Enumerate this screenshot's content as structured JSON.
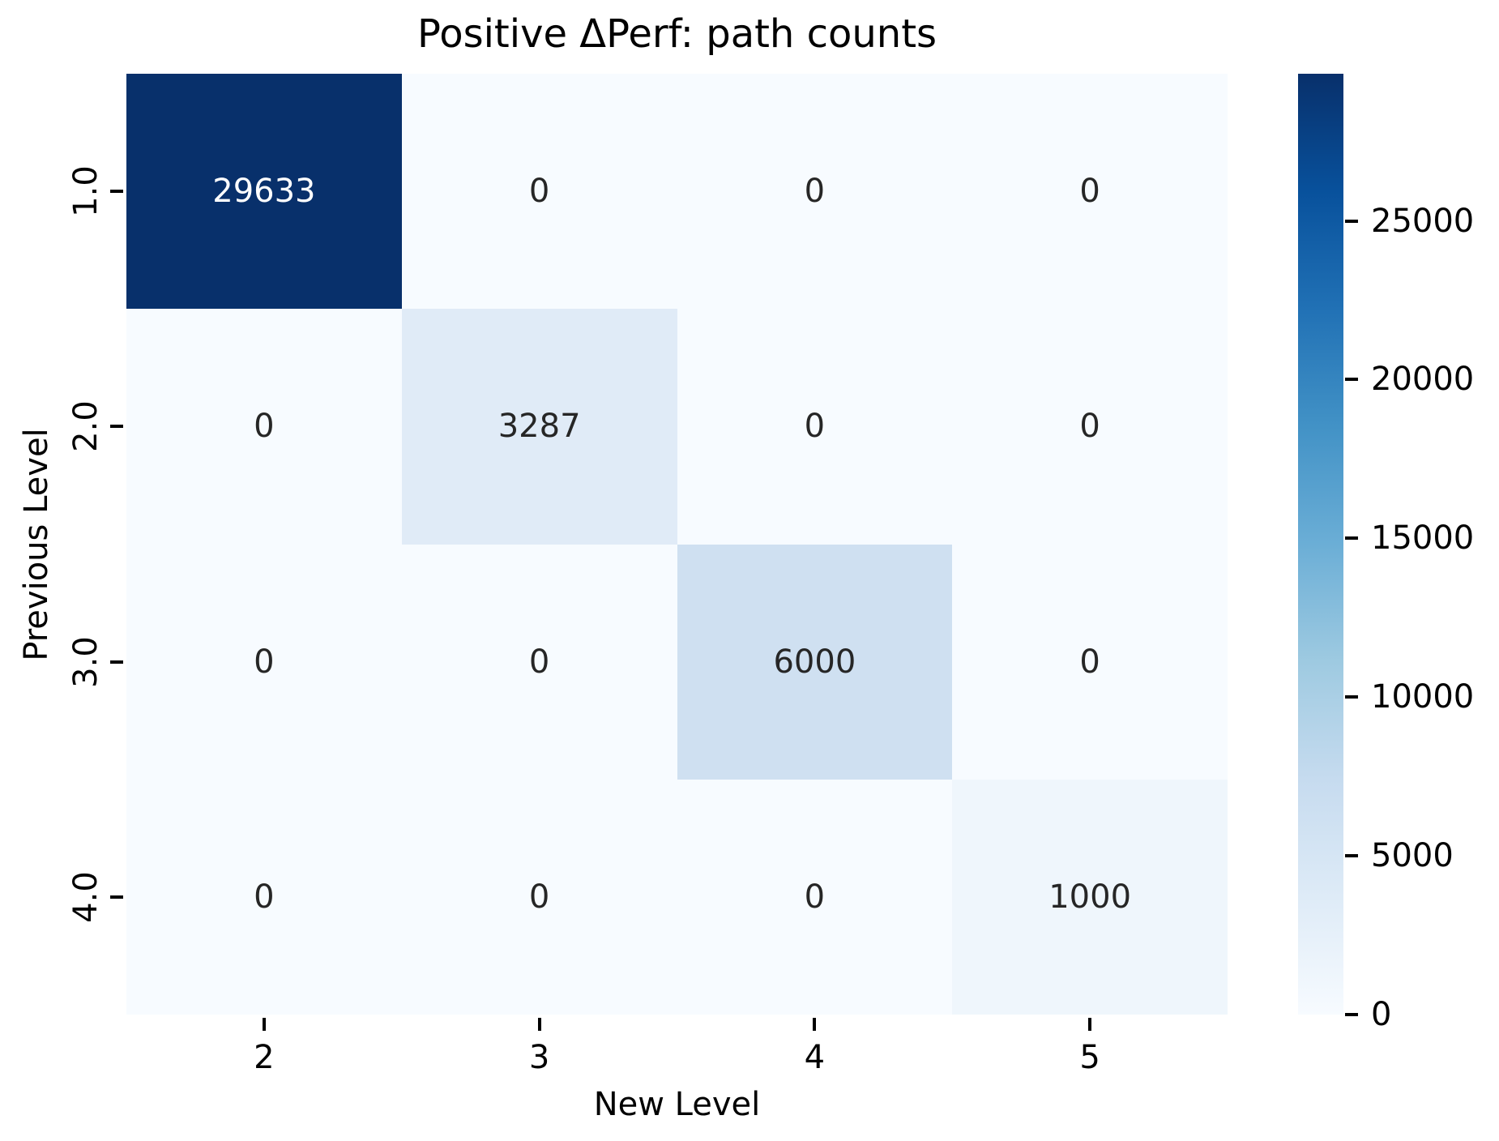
{
  "title": "Positive ΔPerf: path counts",
  "colors": {
    "background": "#ffffff",
    "axis_text": "#000000",
    "annotation_dark": "#262626",
    "annotation_light": "#ffffff",
    "accent_dark_blue": "#08306b",
    "palest_blue": "#f7fbff"
  },
  "chart_data": {
    "type": "heatmap",
    "title": "Positive ΔPerf: path counts",
    "xlabel": "New Level",
    "ylabel": "Previous Level",
    "x_tick_labels": [
      "2",
      "3",
      "4",
      "5"
    ],
    "y_tick_labels": [
      "1.0",
      "2.0",
      "3.0",
      "4.0"
    ],
    "matrix": [
      [
        29633,
        0,
        0,
        0
      ],
      [
        0,
        3287,
        0,
        0
      ],
      [
        0,
        0,
        6000,
        0
      ],
      [
        0,
        0,
        0,
        1000
      ]
    ],
    "vmin": 0,
    "vmax": 29633,
    "colormap": "Blues",
    "grid": false,
    "legend_position": "right-colorbar",
    "colorbar_ticks": [
      0,
      5000,
      10000,
      15000,
      20000,
      25000
    ],
    "colorbar_tick_labels": [
      "0",
      "5000",
      "10000",
      "15000",
      "20000",
      "25000"
    ],
    "colormap_stops": [
      "#f7fbff",
      "#deebf7",
      "#c6dbef",
      "#9ecae1",
      "#6baed6",
      "#4292c6",
      "#2171b5",
      "#08519c",
      "#08306b"
    ],
    "cell_colors": [
      [
        "#08306b",
        "#f7fbff",
        "#f7fbff",
        "#f7fbff"
      ],
      [
        "#f7fbff",
        "#e0ebf7",
        "#f7fbff",
        "#f7fbff"
      ],
      [
        "#f7fbff",
        "#f7fbff",
        "#cfe0f1",
        "#f7fbff"
      ],
      [
        "#f7fbff",
        "#f7fbff",
        "#f7fbff",
        "#eff6fc"
      ]
    ],
    "cell_text_colors": [
      [
        "#ffffff",
        "#262626",
        "#262626",
        "#262626"
      ],
      [
        "#262626",
        "#262626",
        "#262626",
        "#262626"
      ],
      [
        "#262626",
        "#262626",
        "#262626",
        "#262626"
      ],
      [
        "#262626",
        "#262626",
        "#262626",
        "#262626"
      ]
    ]
  }
}
